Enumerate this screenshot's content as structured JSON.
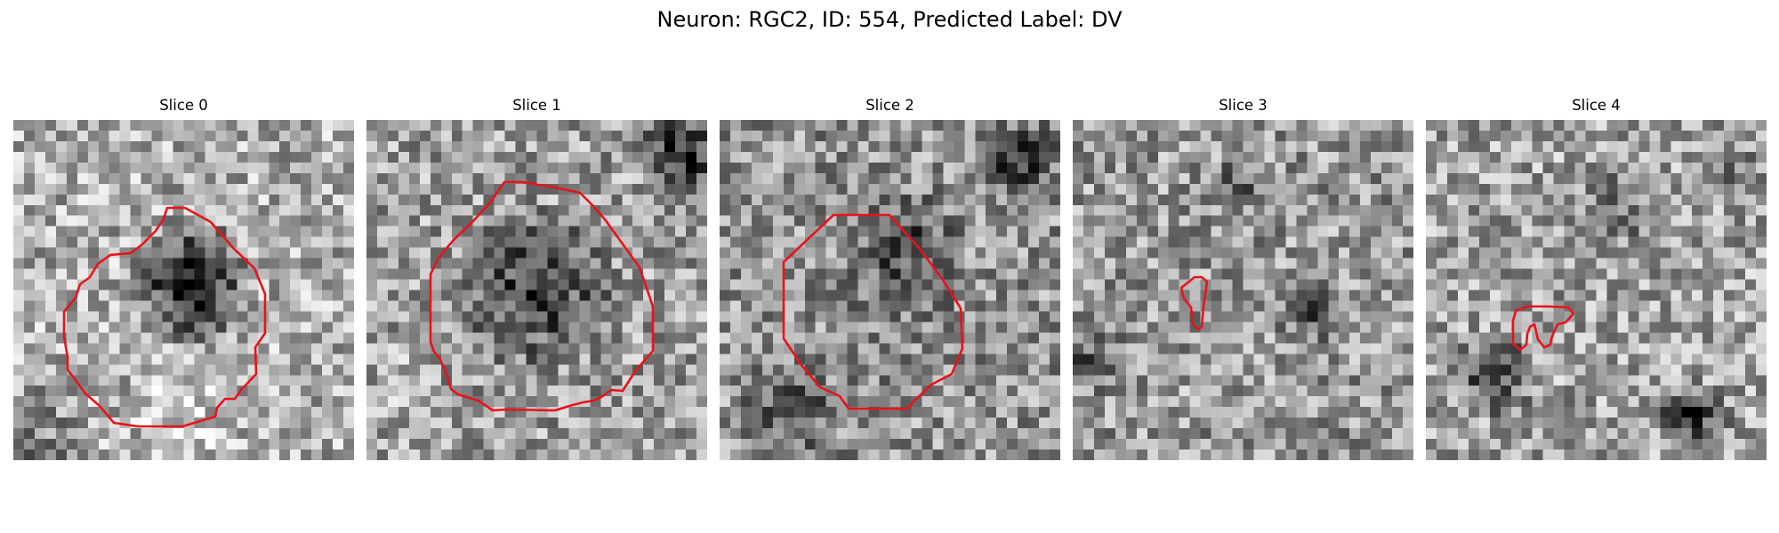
{
  "figure": {
    "title": "Neuron: RGC2, ID: 554, Predicted Label: DV"
  },
  "colors": {
    "roi_outline": "#e8131a",
    "background": "#ffffff",
    "colormap": "grayscale"
  },
  "panels": [
    {
      "title": "Slice 0"
    },
    {
      "title": "Slice 1"
    },
    {
      "title": "Slice 2"
    },
    {
      "title": "Slice 3"
    },
    {
      "title": "Slice 4"
    }
  ]
}
